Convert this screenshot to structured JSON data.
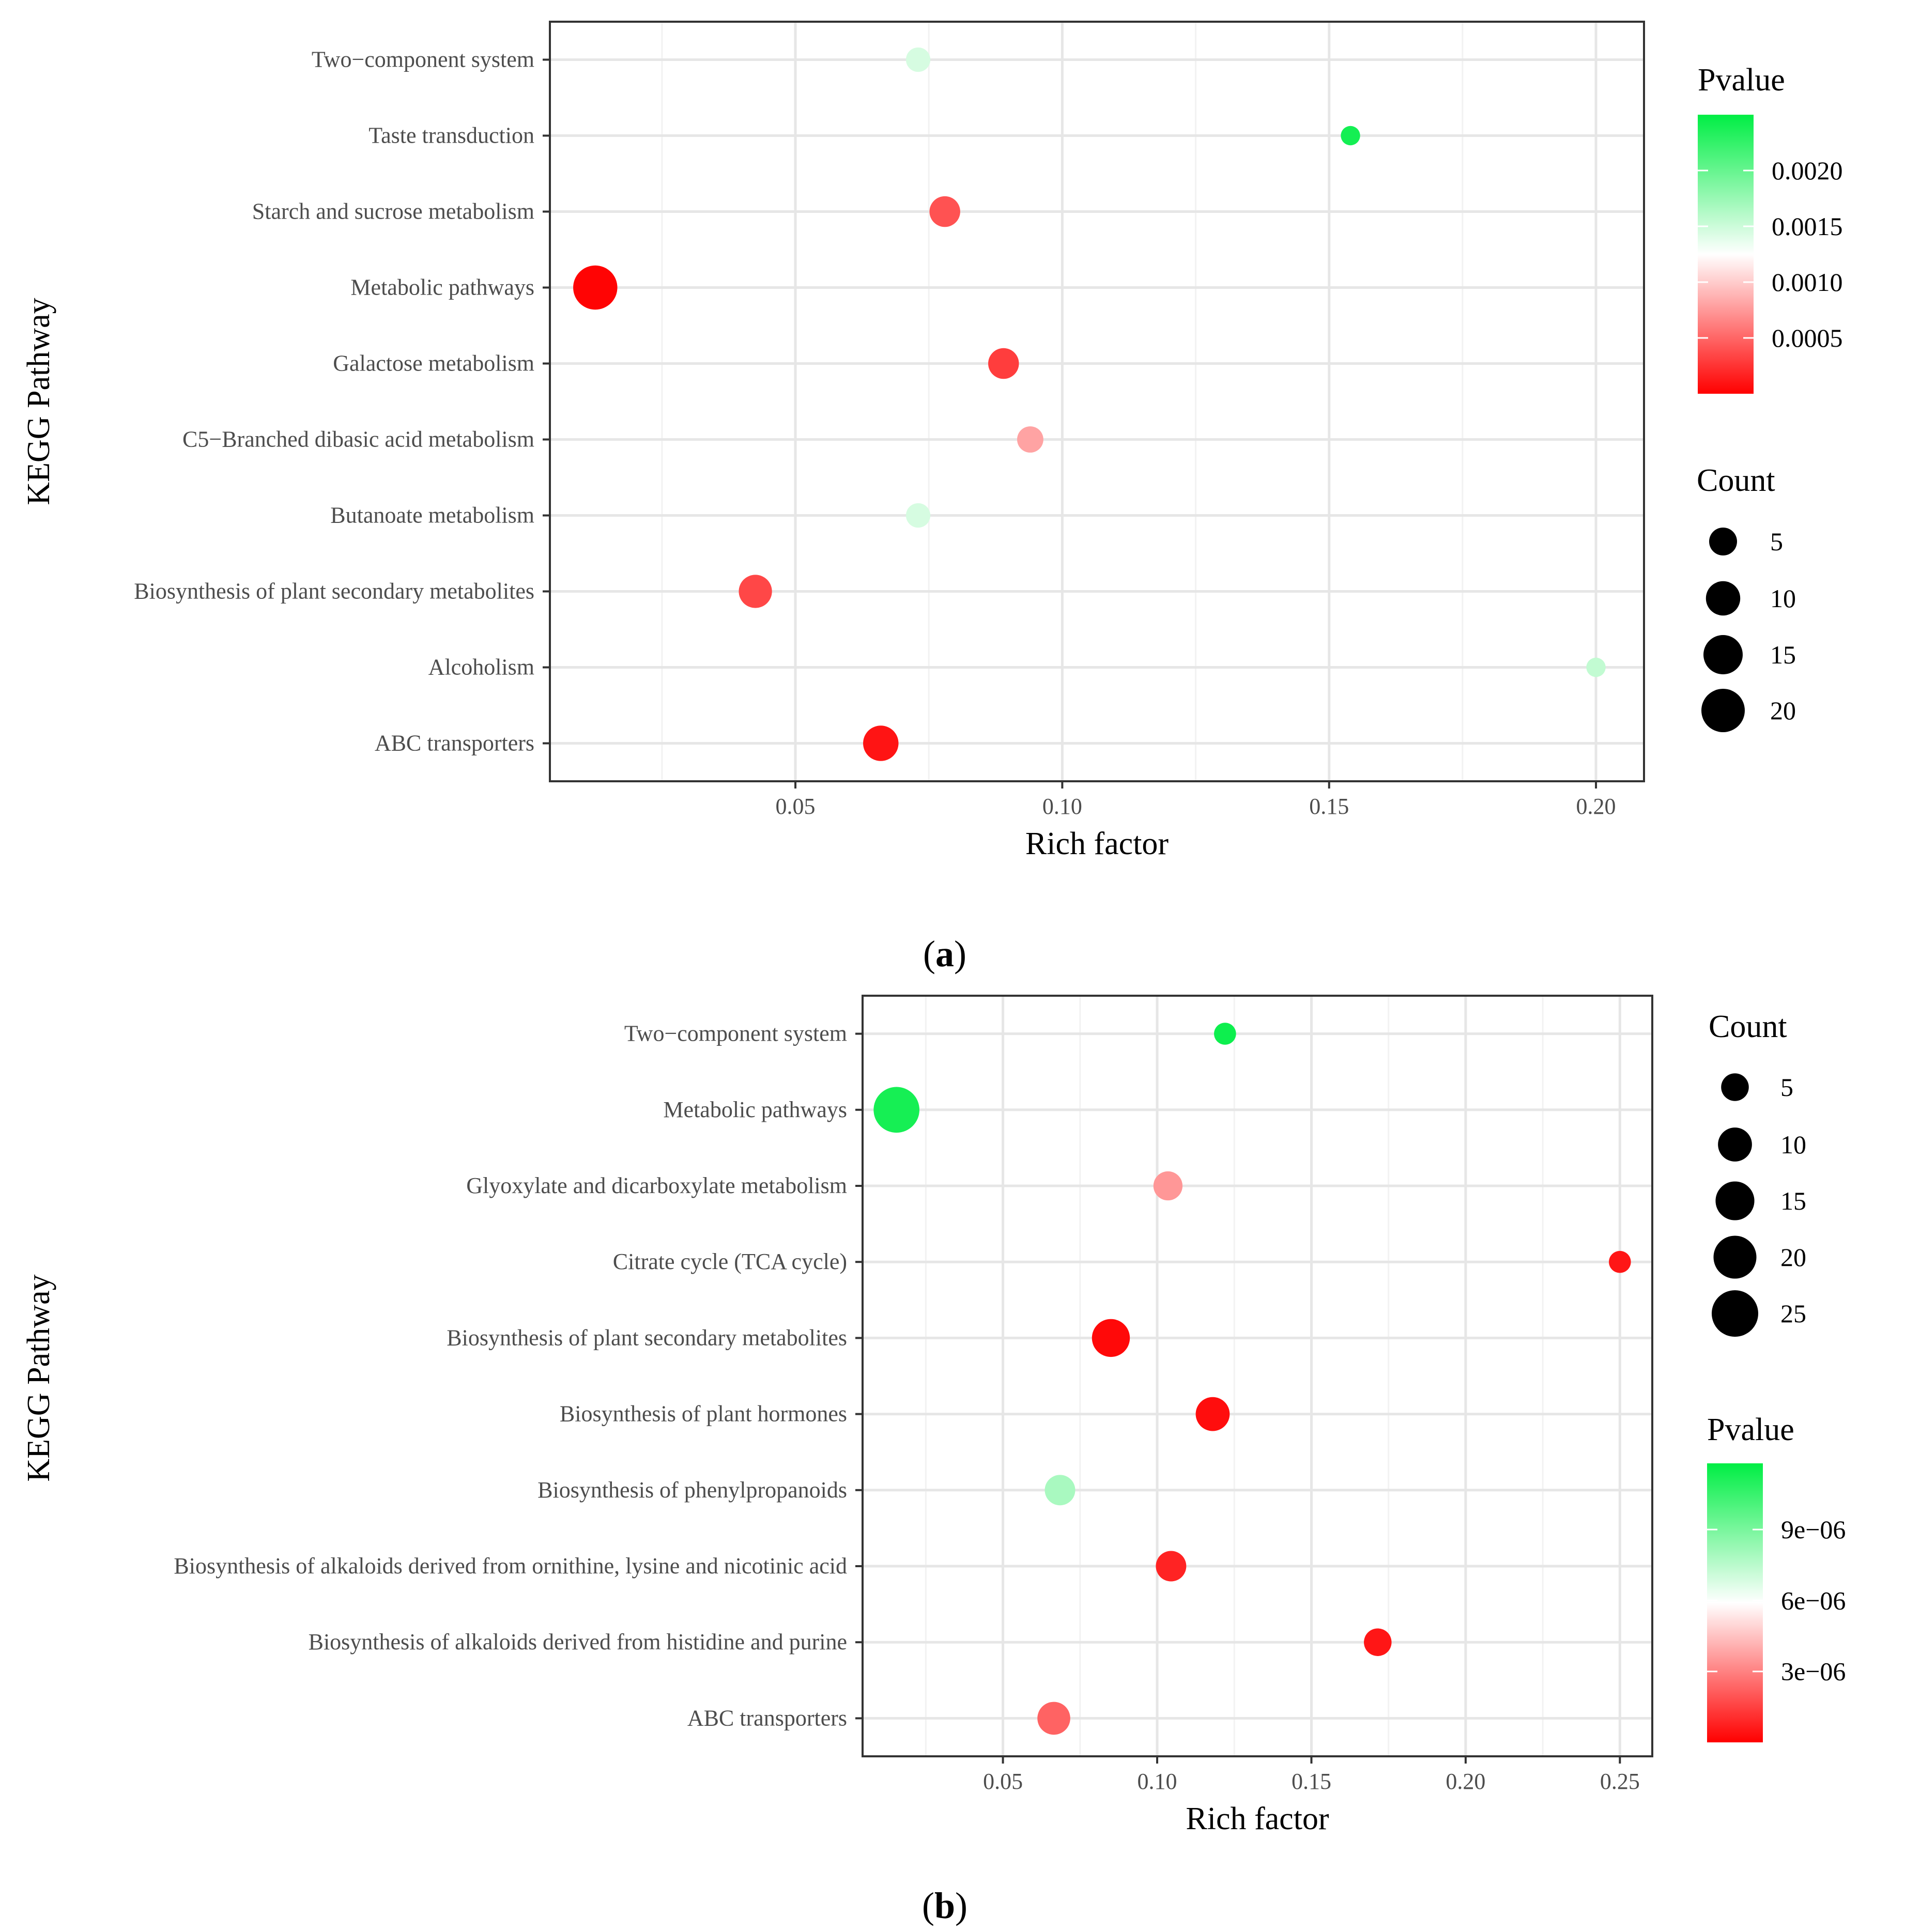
{
  "panel_labels": [
    "a",
    "b"
  ],
  "chart_data": [
    {
      "type": "scatter",
      "panel": "a",
      "xlabel": "Rich factor",
      "ylabel": "KEGG Pathway",
      "xlim": [
        0.004,
        0.209
      ],
      "xticks": [
        0.05,
        0.1,
        0.15,
        0.2
      ],
      "xtick_labels": [
        "0.05",
        "0.10",
        "0.15",
        "0.20"
      ],
      "grid": true,
      "categories": [
        "Two−component system",
        "Taste transduction",
        "Starch and sucrose metabolism",
        "Metabolic pathways",
        "Galactose metabolism",
        "C5−Branched dibasic acid metabolism",
        "Butanoate metabolism",
        "Biosynthesis of plant secondary metabolites",
        "Alcoholism",
        "ABC transporters"
      ],
      "points": [
        {
          "pathway": "Two−component system",
          "rich_factor": 0.073,
          "count": 3,
          "pvalue": 0.00145
        },
        {
          "pathway": "Taste transduction",
          "rich_factor": 0.154,
          "count": 1,
          "pvalue": 0.0024
        },
        {
          "pathway": "Starch and sucrose metabolism",
          "rich_factor": 0.078,
          "count": 7,
          "pvalue": 0.0004
        },
        {
          "pathway": "Metabolic pathways",
          "rich_factor": 0.0125,
          "count": 21,
          "pvalue": 2e-05
        },
        {
          "pathway": "Galactose metabolism",
          "rich_factor": 0.089,
          "count": 7,
          "pvalue": 0.0003
        },
        {
          "pathway": "C5−Branched dibasic acid metabolism",
          "rich_factor": 0.094,
          "count": 4,
          "pvalue": 0.0008
        },
        {
          "pathway": "Butanoate metabolism",
          "rich_factor": 0.073,
          "count": 3,
          "pvalue": 0.00145
        },
        {
          "pathway": "Biosynthesis of plant secondary metabolites",
          "rich_factor": 0.0425,
          "count": 9,
          "pvalue": 0.00035
        },
        {
          "pathway": "Alcoholism",
          "rich_factor": 0.2,
          "count": 1,
          "pvalue": 0.00155
        },
        {
          "pathway": "ABC transporters",
          "rich_factor": 0.066,
          "count": 11,
          "pvalue": 0.0001
        }
      ],
      "color_legend": {
        "title": "Pvalue",
        "min": 0.0,
        "max": 0.0025,
        "ticks": [
          0.002,
          0.0015,
          0.001,
          0.0005
        ],
        "tick_labels": [
          "0.0020",
          "0.0015",
          "0.0010",
          "0.0005"
        ],
        "low_color": "#ff0000",
        "mid_color": "#ffffff",
        "high_color": "#00ee44",
        "placement": "right-top"
      },
      "size_legend": {
        "title": "Count",
        "values": [
          5,
          10,
          15,
          20
        ],
        "labels": [
          "5",
          "10",
          "15",
          "20"
        ],
        "placement": "right-middle"
      }
    },
    {
      "type": "scatter",
      "panel": "b",
      "xlabel": "Rich factor",
      "ylabel": "KEGG Pathway",
      "xlim": [
        0.0045,
        0.2605
      ],
      "xticks": [
        0.05,
        0.1,
        0.15,
        0.2,
        0.25
      ],
      "xtick_labels": [
        "0.05",
        "0.10",
        "0.15",
        "0.20",
        "0.25"
      ],
      "grid": true,
      "categories": [
        "Two−component system",
        "Metabolic pathways",
        "Glyoxylate and dicarboxylate metabolism",
        "Citrate cycle (TCA cycle)",
        "Biosynthesis of plant secondary metabolites",
        "Biosynthesis of plant hormones",
        "Biosynthesis of phenylpropanoids",
        "Biosynthesis of alkaloids derived from ornithine, lysine and nicotinic acid",
        "Biosynthesis of alkaloids derived from histidine and purine",
        "ABC transporters"
      ],
      "points": [
        {
          "pathway": "Two−component system",
          "rich_factor": 0.122,
          "count": 2,
          "pvalue": 1.15e-05
        },
        {
          "pathway": "Metabolic pathways",
          "rich_factor": 0.0155,
          "count": 24,
          "pvalue": 1.13e-05
        },
        {
          "pathway": "Glyoxylate and dicarboxylate metabolism",
          "rich_factor": 0.1035,
          "count": 6,
          "pvalue": 3.5e-06
        },
        {
          "pathway": "Citrate cycle (TCA cycle)",
          "rich_factor": 0.25,
          "count": 2,
          "pvalue": 5e-07
        },
        {
          "pathway": "Biosynthesis of plant secondary metabolites",
          "rich_factor": 0.085,
          "count": 14,
          "pvalue": 2e-07
        },
        {
          "pathway": "Biosynthesis of plant hormones",
          "rich_factor": 0.118,
          "count": 10,
          "pvalue": 3e-07
        },
        {
          "pathway": "Biosynthesis of phenylpropanoids",
          "rich_factor": 0.0685,
          "count": 7,
          "pvalue": 7.9e-06
        },
        {
          "pathway": "Biosynthesis of alkaloids derived from ornithine, lysine and nicotinic acid",
          "rich_factor": 0.1045,
          "count": 7,
          "pvalue": 8e-07
        },
        {
          "pathway": "Biosynthesis of alkaloids derived from histidine and purine",
          "rich_factor": 0.1715,
          "count": 5,
          "pvalue": 5e-07
        },
        {
          "pathway": "ABC transporters",
          "rich_factor": 0.0665,
          "count": 9,
          "pvalue": 2.3e-06
        }
      ],
      "color_legend": {
        "title": "Pvalue",
        "min": 0.0,
        "max": 1.18e-05,
        "ticks": [
          9e-06,
          6e-06,
          3e-06
        ],
        "tick_labels": [
          "9e−06",
          "6e−06",
          "3e−06"
        ],
        "low_color": "#ff0000",
        "mid_color": "#ffffff",
        "high_color": "#00ee44",
        "placement": "right-bottom"
      },
      "size_legend": {
        "title": "Count",
        "values": [
          5,
          10,
          15,
          20,
          25
        ],
        "labels": [
          "5",
          "10",
          "15",
          "20",
          "25"
        ],
        "placement": "right-top"
      }
    }
  ]
}
